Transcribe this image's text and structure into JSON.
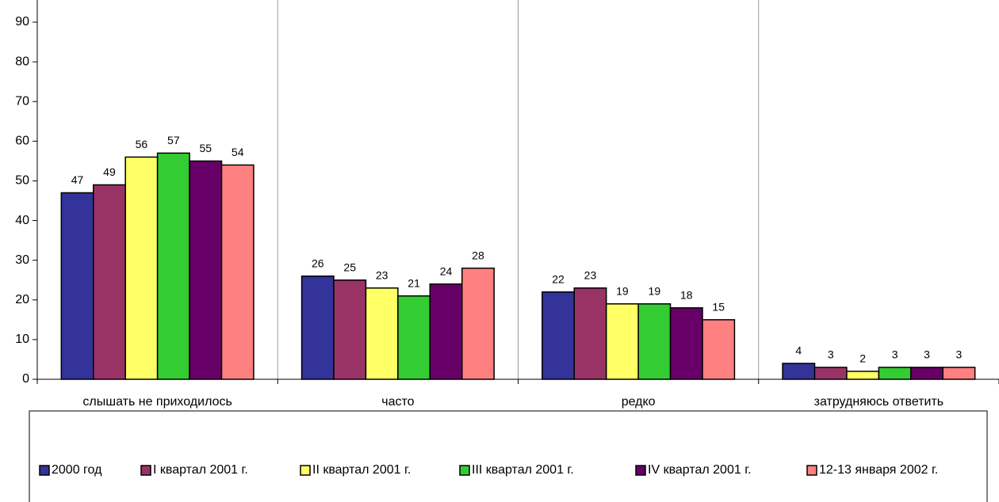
{
  "chart_data": {
    "type": "bar",
    "categories": [
      "слышать не приходилось",
      "часто",
      "редко",
      "затрудняюсь ответить"
    ],
    "series": [
      {
        "name": "2000 год",
        "color": "#333399",
        "values": [
          47,
          26,
          22,
          4
        ]
      },
      {
        "name": "I квартал 2001 г.",
        "color": "#993366",
        "values": [
          49,
          25,
          23,
          3
        ]
      },
      {
        "name": "II квартал 2001 г.",
        "color": "#ffff66",
        "values": [
          56,
          23,
          19,
          2
        ]
      },
      {
        "name": "III квартал 2001 г.",
        "color": "#33cc33",
        "values": [
          57,
          21,
          19,
          3
        ]
      },
      {
        "name": "IV квартал 2001 г.",
        "color": "#660066",
        "values": [
          55,
          24,
          18,
          3
        ]
      },
      {
        "name": "12-13 января 2002 г.",
        "color": "#ff8080",
        "values": [
          54,
          28,
          15,
          3
        ]
      }
    ],
    "ylim": [
      0,
      90
    ],
    "yticks": [
      0,
      10,
      20,
      30,
      40,
      50,
      60,
      70,
      80,
      90
    ],
    "legend": "bottom"
  }
}
